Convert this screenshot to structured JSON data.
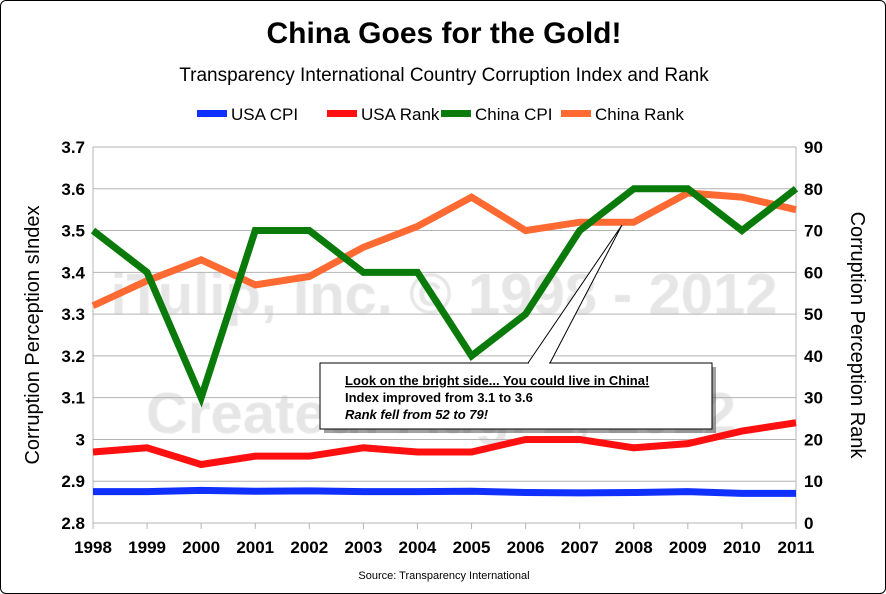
{
  "chart_data": {
    "type": "line",
    "title": "China Goes for the Gold!",
    "subtitle": "Transparency International Country Corruption Index and Rank",
    "ylabel": "Corruption Perception sIndex",
    "y2label": "Corruption Perception Rank",
    "source": "Source: Transparency International",
    "x": [
      "1998",
      "1999",
      "2000",
      "2001",
      "2002",
      "2003",
      "2004",
      "2005",
      "2006",
      "2007",
      "2008",
      "2009",
      "2010",
      "2011"
    ],
    "ylim": [
      2.8,
      3.7
    ],
    "yticks": [
      "2.8",
      "2.9",
      "3",
      "3.1",
      "3.2",
      "3.3",
      "3.4",
      "3.5",
      "3.6",
      "3.7"
    ],
    "y2lim": [
      0,
      90
    ],
    "y2ticks": [
      "0",
      "10",
      "20",
      "30",
      "40",
      "50",
      "60",
      "70",
      "80",
      "90"
    ],
    "grid": true,
    "legend_position": "top",
    "series": [
      {
        "name": "USA CPI",
        "axis": "right",
        "color": "#1030ff",
        "values": [
          7.5,
          7.5,
          7.8,
          7.6,
          7.7,
          7.5,
          7.5,
          7.6,
          7.3,
          7.2,
          7.3,
          7.5,
          7.1,
          7.1
        ]
      },
      {
        "name": "USA Rank",
        "axis": "right",
        "color": "#ff1010",
        "values": [
          17,
          18,
          14,
          16,
          16,
          18,
          17,
          17,
          20,
          20,
          18,
          19,
          22,
          24
        ]
      },
      {
        "name": "China CPI",
        "axis": "left",
        "color": "#0a7a0a",
        "values": [
          3.5,
          3.4,
          3.1,
          3.5,
          3.5,
          3.4,
          3.4,
          3.2,
          3.3,
          3.5,
          3.6,
          3.6,
          3.5,
          3.6
        ]
      },
      {
        "name": "China Rank",
        "axis": "right",
        "color": "#ff6a33",
        "values": [
          52,
          58,
          63,
          57,
          59,
          66,
          71,
          78,
          70,
          72,
          72,
          79,
          78,
          75
        ]
      }
    ],
    "watermark": [
      "iTulip, Inc. © 1998 - 2012",
      "Created: Aug. 2, 2012"
    ],
    "annotation": {
      "heading": "Look on the bright side... You could live in China!",
      "line1": "Index improved from 3.1 to 3.6",
      "line2": "Rank fell from 52 to 79!",
      "points_to_year": "2008"
    }
  }
}
